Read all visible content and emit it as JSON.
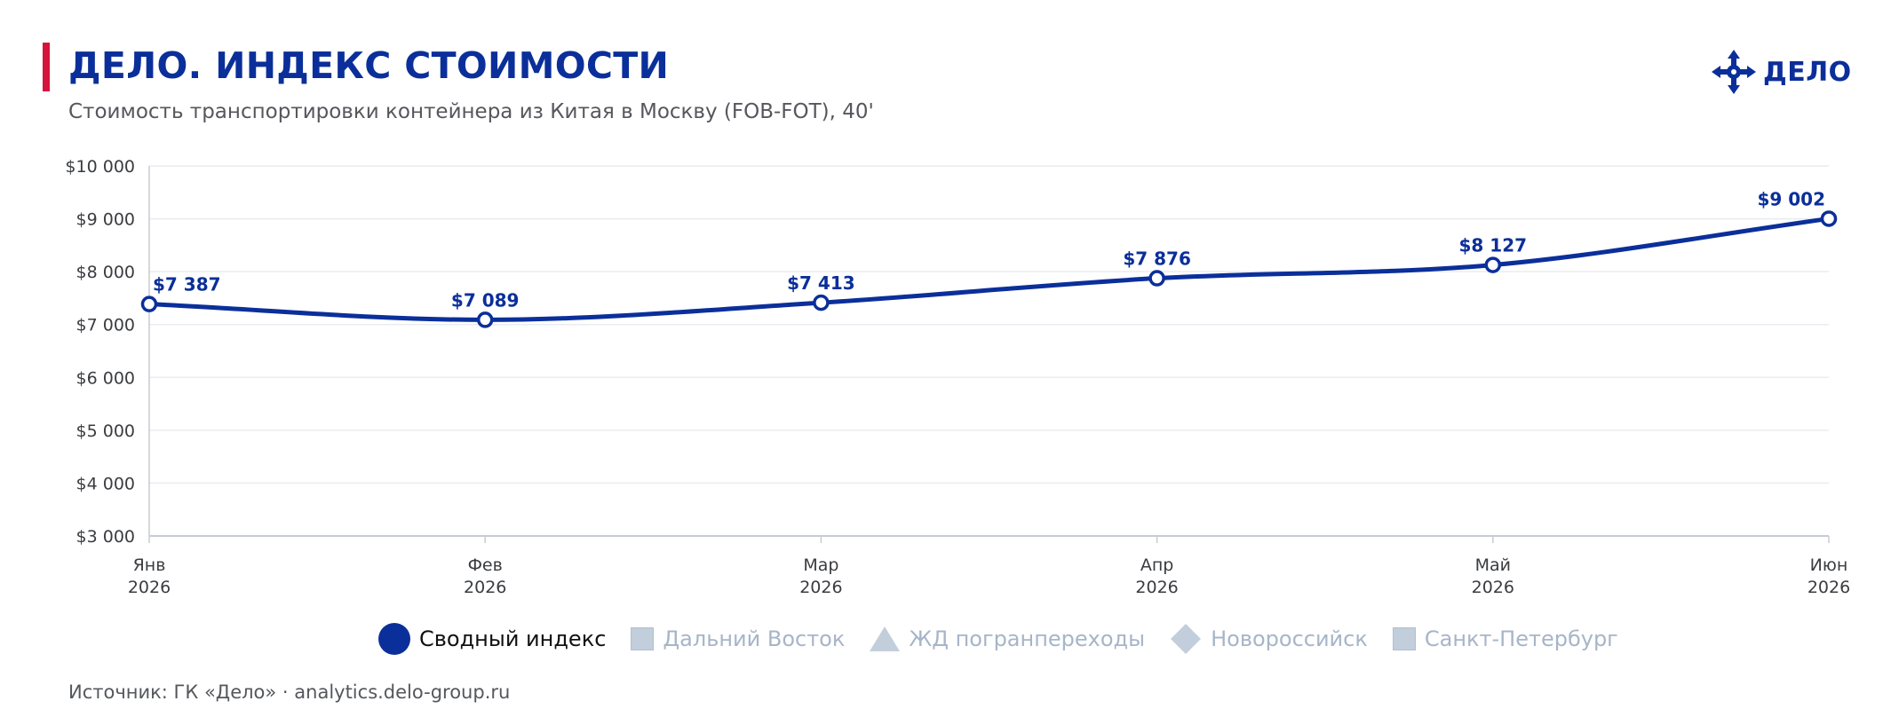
{
  "header": {
    "title": "ДЕЛО. ИНДЕКС СТОИМОСТИ",
    "subtitle": "Стоимость транспортировки контейнера из Китая в Москву (FOB-FOT), 40'",
    "logo_text": "ДЕЛО",
    "accent_color": "#d4143c",
    "brand_color": "#0b2f9a"
  },
  "chart_data": {
    "type": "line",
    "categories": [
      [
        "Янв",
        "2026"
      ],
      [
        "Фев",
        "2026"
      ],
      [
        "Мар",
        "2026"
      ],
      [
        "Апр",
        "2026"
      ],
      [
        "Май",
        "2026"
      ],
      [
        "Июн",
        "2026"
      ]
    ],
    "series": [
      {
        "name": "Сводный индекс",
        "values": [
          7387,
          7089,
          7413,
          7876,
          8127,
          9002
        ],
        "labels": [
          "$7 387",
          "$7 089",
          "$7 413",
          "$7 876",
          "$8 127",
          "$9 002"
        ],
        "color": "#0b2f9a"
      }
    ],
    "ylim": [
      3000,
      10000
    ],
    "yticks": [
      3000,
      4000,
      5000,
      6000,
      7000,
      8000,
      9000,
      10000
    ],
    "ytick_labels": [
      "$3 000",
      "$4 000",
      "$5 000",
      "$6 000",
      "$7 000",
      "$8 000",
      "$9 000",
      "$10 000"
    ],
    "grid": true,
    "legend_position": "bottom-center"
  },
  "legend": [
    {
      "label": "Сводный индекс",
      "marker": "circle",
      "active": true,
      "color": "#0b2f9a"
    },
    {
      "label": "Дальний Восток",
      "marker": "square",
      "active": false,
      "color": "#c2cedb"
    },
    {
      "label": "ЖД погранпереходы",
      "marker": "triangle",
      "active": false,
      "color": "#c2cedb"
    },
    {
      "label": "Новороссийск",
      "marker": "diamond",
      "active": false,
      "color": "#c2cedb"
    },
    {
      "label": "Санкт-Петербург",
      "marker": "square",
      "active": false,
      "color": "#c2cedb"
    }
  ],
  "footer": {
    "source": "Источник: ГК «Дело» · analytics.delo-group.ru"
  }
}
